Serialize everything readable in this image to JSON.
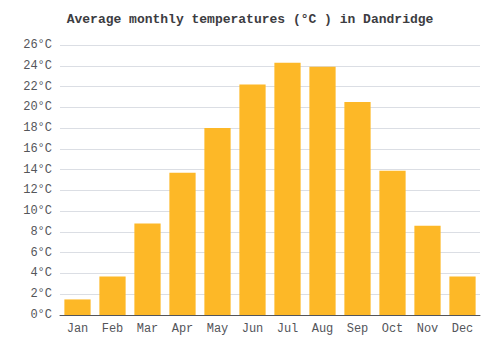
{
  "chart_data": {
    "type": "bar",
    "title": "Average monthly temperatures (°C ) in Dandridge",
    "categories": [
      "Jan",
      "Feb",
      "Mar",
      "Apr",
      "May",
      "Jun",
      "Jul",
      "Aug",
      "Sep",
      "Oct",
      "Nov",
      "Dec"
    ],
    "values": [
      1.5,
      3.7,
      8.8,
      13.7,
      18.0,
      22.2,
      24.3,
      23.9,
      20.5,
      13.9,
      8.6,
      3.7
    ],
    "color": "#FDB827",
    "ylim": [
      0,
      26
    ],
    "yticks": [
      {
        "value": 0,
        "label": "0°C"
      },
      {
        "value": 2,
        "label": "2°C"
      },
      {
        "value": 4,
        "label": "4°C"
      },
      {
        "value": 6,
        "label": "6°C"
      },
      {
        "value": 8,
        "label": "8°C"
      },
      {
        "value": 10,
        "label": "10°C"
      },
      {
        "value": 12,
        "label": "12°C"
      },
      {
        "value": 14,
        "label": "14°C"
      },
      {
        "value": 16,
        "label": "16°C"
      },
      {
        "value": 18,
        "label": "18°C"
      },
      {
        "value": 20,
        "label": "20°C"
      },
      {
        "value": 22,
        "label": "22°C"
      },
      {
        "value": 24,
        "label": "24°C"
      },
      {
        "value": 26,
        "label": "26°C"
      }
    ],
    "grid": true
  }
}
